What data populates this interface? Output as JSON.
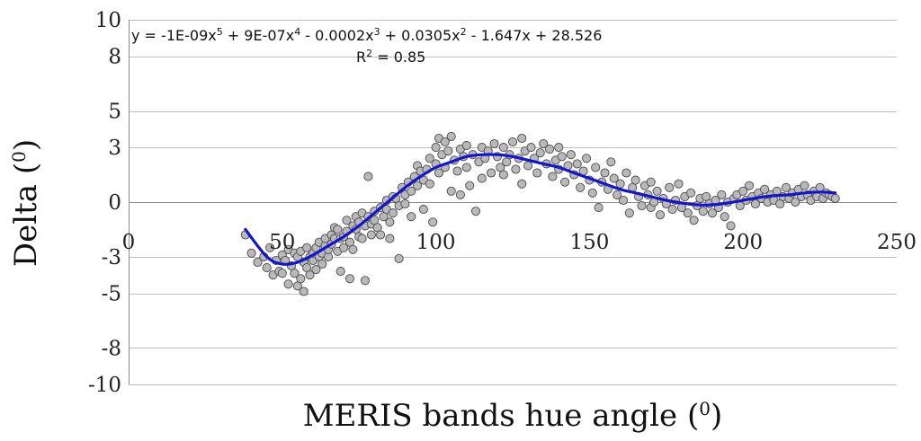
{
  "chart_data": {
    "type": "scatter",
    "title": "",
    "xlabel": "MERIS bands hue angle",
    "xlabel_sup": "0",
    "ylabel": "Delta",
    "ylabel_sup": "0",
    "xlim": [
      0,
      250
    ],
    "ylim": [
      -10,
      10
    ],
    "x_ticks": [
      0,
      50,
      100,
      150,
      200,
      250
    ],
    "y_ticks": [
      "10",
      "8",
      "5",
      "3",
      "0",
      "-3",
      "-5",
      "-8",
      "-10"
    ],
    "grid": "horizontal",
    "trendline": {
      "type": "polynomial",
      "order": 5,
      "equation_parts": [
        "y = -1E-09x",
        "5",
        " + 9E-07x",
        "4",
        " - 0.0002x",
        "3",
        " + 0.0305x",
        "2",
        " - 1.647x + 28.526"
      ],
      "r2_prefix": "R",
      "r2_sup": "2",
      "r2_suffix": " = 0.85",
      "curve_x": [
        38,
        45,
        50,
        55,
        60,
        65,
        70,
        75,
        80,
        85,
        90,
        95,
        100,
        105,
        110,
        115,
        120,
        125,
        130,
        135,
        140,
        145,
        150,
        155,
        160,
        165,
        170,
        175,
        180,
        185,
        190,
        195,
        200,
        205,
        210,
        215,
        220,
        225,
        230
      ],
      "curve_y": [
        -1.5,
        -3.0,
        -3.4,
        -3.3,
        -2.9,
        -2.4,
        -1.9,
        -1.3,
        -0.6,
        0.1,
        0.8,
        1.4,
        1.9,
        2.2,
        2.5,
        2.6,
        2.6,
        2.5,
        2.3,
        2.1,
        1.9,
        1.6,
        1.3,
        1.0,
        0.7,
        0.5,
        0.3,
        0.1,
        -0.05,
        -0.15,
        -0.15,
        -0.05,
        0.1,
        0.25,
        0.35,
        0.4,
        0.5,
        0.55,
        0.5
      ],
      "color": "#1414d2"
    },
    "series": [
      {
        "marker_fill": "#b9b9b9",
        "marker_edge": "#4a4a4a",
        "points": [
          [
            38,
            -1.8
          ],
          [
            40,
            -2.8
          ],
          [
            42,
            -3.3
          ],
          [
            44,
            -3.0
          ],
          [
            45,
            -3.6
          ],
          [
            46,
            -2.5
          ],
          [
            47,
            -4.0
          ],
          [
            48,
            -3.2
          ],
          [
            49,
            -3.8
          ],
          [
            50,
            -3.9
          ],
          [
            50,
            -2.9
          ],
          [
            51,
            -3.2
          ],
          [
            52,
            -2.6
          ],
          [
            52,
            -4.5
          ],
          [
            53,
            -3.5
          ],
          [
            54,
            -2.8
          ],
          [
            54,
            -3.9
          ],
          [
            55,
            -3.0
          ],
          [
            55,
            -4.6
          ],
          [
            56,
            -2.7
          ],
          [
            56,
            -4.2
          ],
          [
            57,
            -3.3
          ],
          [
            57,
            -4.9
          ],
          [
            58,
            -3.6
          ],
          [
            58,
            -2.5
          ],
          [
            59,
            -3.0
          ],
          [
            59,
            -4.0
          ],
          [
            60,
            -3.2
          ],
          [
            60,
            -2.8
          ],
          [
            61,
            -2.5
          ],
          [
            61,
            -3.7
          ],
          [
            62,
            -3.0
          ],
          [
            62,
            -2.2
          ],
          [
            63,
            -2.8
          ],
          [
            63,
            -3.4
          ],
          [
            64,
            -2.4
          ],
          [
            64,
            -2.0
          ],
          [
            65,
            -3.0
          ],
          [
            65,
            -2.6
          ],
          [
            66,
            -1.8
          ],
          [
            66,
            -2.3
          ],
          [
            67,
            -2.0
          ],
          [
            67,
            -1.4
          ],
          [
            68,
            -2.7
          ],
          [
            68,
            -1.5
          ],
          [
            69,
            -2.0
          ],
          [
            69,
            -3.8
          ],
          [
            70,
            -1.9
          ],
          [
            70,
            -2.5
          ],
          [
            71,
            -1.6
          ],
          [
            71,
            -1.0
          ],
          [
            72,
            -2.2
          ],
          [
            72,
            -4.2
          ],
          [
            73,
            -1.3
          ],
          [
            73,
            -2.6
          ],
          [
            74,
            -0.8
          ],
          [
            74,
            -1.5
          ],
          [
            75,
            -1.9
          ],
          [
            75,
            -1.1
          ],
          [
            76,
            -0.6
          ],
          [
            76,
            -2.0
          ],
          [
            77,
            -1.3
          ],
          [
            77,
            -4.3
          ],
          [
            78,
            1.4
          ],
          [
            78,
            -0.8
          ],
          [
            79,
            -1.2
          ],
          [
            79,
            -1.8
          ],
          [
            80,
            -0.5
          ],
          [
            80,
            -1.0
          ],
          [
            81,
            -1.4
          ],
          [
            82,
            -0.3
          ],
          [
            82,
            -1.8
          ],
          [
            83,
            -0.8
          ],
          [
            84,
            0.1
          ],
          [
            84,
            -0.4
          ],
          [
            85,
            -1.1
          ],
          [
            85,
            -2.0
          ],
          [
            86,
            0.3
          ],
          [
            86,
            -0.6
          ],
          [
            87,
            0.2
          ],
          [
            88,
            -0.2
          ],
          [
            88,
            -3.1
          ],
          [
            89,
            0.8
          ],
          [
            90,
            0.4
          ],
          [
            90,
            -0.1
          ],
          [
            91,
            1.1
          ],
          [
            92,
            0.6
          ],
          [
            92,
            -0.8
          ],
          [
            93,
            1.4
          ],
          [
            94,
            2.0
          ],
          [
            94,
            0.9
          ],
          [
            95,
            1.7
          ],
          [
            96,
            1.2
          ],
          [
            96,
            -0.4
          ],
          [
            97,
            1.8
          ],
          [
            98,
            2.4
          ],
          [
            98,
            1.0
          ],
          [
            99,
            -1.1
          ],
          [
            100,
            3.0
          ],
          [
            100,
            2.1
          ],
          [
            101,
            3.5
          ],
          [
            101,
            1.6
          ],
          [
            102,
            2.6
          ],
          [
            103,
            3.3
          ],
          [
            103,
            1.9
          ],
          [
            104,
            2.8
          ],
          [
            105,
            3.6
          ],
          [
            105,
            0.6
          ],
          [
            106,
            2.3
          ],
          [
            107,
            1.7
          ],
          [
            108,
            2.9
          ],
          [
            108,
            0.4
          ],
          [
            109,
            2.5
          ],
          [
            110,
            3.1
          ],
          [
            110,
            1.9
          ],
          [
            111,
            0.9
          ],
          [
            112,
            2.6
          ],
          [
            113,
            -0.5
          ],
          [
            114,
            2.2
          ],
          [
            115,
            3.0
          ],
          [
            115,
            1.3
          ],
          [
            116,
            2.4
          ],
          [
            117,
            2.8
          ],
          [
            118,
            1.6
          ],
          [
            119,
            3.2
          ],
          [
            120,
            2.5
          ],
          [
            121,
            1.9
          ],
          [
            122,
            3.0
          ],
          [
            122,
            1.5
          ],
          [
            123,
            2.2
          ],
          [
            124,
            2.6
          ],
          [
            125,
            3.3
          ],
          [
            126,
            1.8
          ],
          [
            127,
            2.4
          ],
          [
            128,
            3.5
          ],
          [
            128,
            1.0
          ],
          [
            129,
            2.8
          ],
          [
            130,
            2.0
          ],
          [
            131,
            3.0
          ],
          [
            132,
            2.4
          ],
          [
            133,
            1.6
          ],
          [
            134,
            2.7
          ],
          [
            135,
            3.2
          ],
          [
            136,
            2.1
          ],
          [
            137,
            2.9
          ],
          [
            138,
            1.4
          ],
          [
            139,
            2.3
          ],
          [
            140,
            3.0
          ],
          [
            140,
            1.8
          ],
          [
            141,
            2.5
          ],
          [
            142,
            1.1
          ],
          [
            143,
            2.0
          ],
          [
            144,
            2.6
          ],
          [
            145,
            1.5
          ],
          [
            146,
            2.1
          ],
          [
            147,
            0.8
          ],
          [
            148,
            1.7
          ],
          [
            149,
            2.4
          ],
          [
            150,
            1.2
          ],
          [
            151,
            0.5
          ],
          [
            152,
            1.9
          ],
          [
            153,
            -0.3
          ],
          [
            154,
            1.1
          ],
          [
            155,
            1.6
          ],
          [
            156,
            0.7
          ],
          [
            157,
            2.2
          ],
          [
            158,
            1.3
          ],
          [
            159,
            0.4
          ],
          [
            160,
            1.0
          ],
          [
            161,
            0.1
          ],
          [
            162,
            1.6
          ],
          [
            163,
            -0.6
          ],
          [
            164,
            0.8
          ],
          [
            165,
            1.2
          ],
          [
            166,
            0.3
          ],
          [
            167,
            -0.2
          ],
          [
            168,
            0.9
          ],
          [
            169,
            0.4
          ],
          [
            170,
            1.1
          ],
          [
            170,
            -0.3
          ],
          [
            171,
            0.0
          ],
          [
            172,
            0.6
          ],
          [
            173,
            -0.7
          ],
          [
            174,
            0.2
          ],
          [
            175,
            -0.1
          ],
          [
            176,
            0.8
          ],
          [
            177,
            -0.4
          ],
          [
            178,
            0.1
          ],
          [
            179,
            1.0
          ],
          [
            180,
            -0.3
          ],
          [
            181,
            0.3
          ],
          [
            182,
            -0.6
          ],
          [
            183,
            0.5
          ],
          [
            184,
            -1.0
          ],
          [
            185,
            -0.2
          ],
          [
            186,
            0.2
          ],
          [
            187,
            -0.5
          ],
          [
            188,
            0.3
          ],
          [
            189,
            -0.1
          ],
          [
            190,
            -0.6
          ],
          [
            191,
            0.1
          ],
          [
            192,
            -0.3
          ],
          [
            193,
            0.4
          ],
          [
            194,
            -0.8
          ],
          [
            195,
            0.0
          ],
          [
            196,
            -1.3
          ],
          [
            197,
            0.2
          ],
          [
            198,
            0.4
          ],
          [
            199,
            -0.2
          ],
          [
            200,
            0.6
          ],
          [
            201,
            0.1
          ],
          [
            202,
            0.9
          ],
          [
            203,
            0.3
          ],
          [
            204,
            -0.1
          ],
          [
            205,
            0.5
          ],
          [
            206,
            0.2
          ],
          [
            207,
            0.7
          ],
          [
            208,
            0.0
          ],
          [
            209,
            0.4
          ],
          [
            210,
            0.1
          ],
          [
            211,
            0.6
          ],
          [
            212,
            -0.1
          ],
          [
            213,
            0.3
          ],
          [
            214,
            0.8
          ],
          [
            215,
            0.2
          ],
          [
            216,
            0.5
          ],
          [
            217,
            0.0
          ],
          [
            218,
            0.7
          ],
          [
            219,
            0.3
          ],
          [
            220,
            0.9
          ],
          [
            221,
            0.4
          ],
          [
            222,
            0.1
          ],
          [
            223,
            0.6
          ],
          [
            224,
            0.3
          ],
          [
            225,
            0.8
          ],
          [
            226,
            0.2
          ],
          [
            227,
            0.5
          ],
          [
            228,
            0.4
          ],
          [
            229,
            0.3
          ],
          [
            230,
            0.2
          ]
        ]
      }
    ]
  }
}
